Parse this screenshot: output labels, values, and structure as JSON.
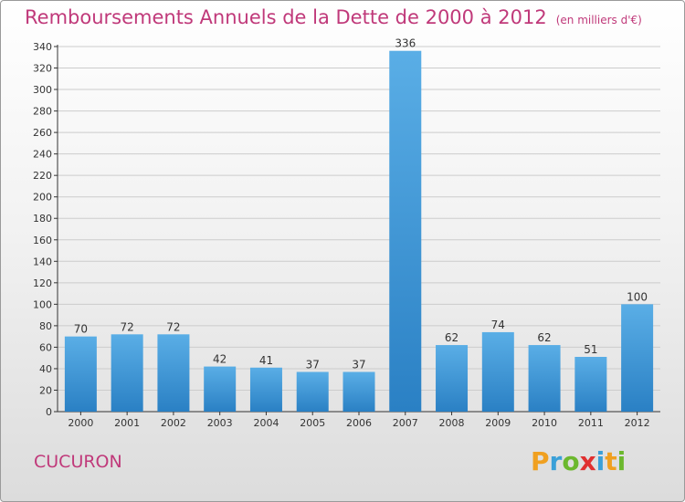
{
  "title": "Remboursements Annuels de la Dette de 2000 à 2012",
  "unit": "(en milliers d'€)",
  "city": "CUCURON",
  "logo": {
    "text": "Proxiti",
    "letters": [
      {
        "ch": "P",
        "color": "#f0a020"
      },
      {
        "ch": "r",
        "color": "#3aa0d8"
      },
      {
        "ch": "o",
        "color": "#6cb82e"
      },
      {
        "ch": "x",
        "color": "#e03030"
      },
      {
        "ch": "i",
        "color": "#3aa0d8"
      },
      {
        "ch": "t",
        "color": "#f0a020"
      },
      {
        "ch": "i",
        "color": "#6cb82e"
      }
    ]
  },
  "colors": {
    "title": "#c0397a",
    "bar_light": "#5aaee6",
    "bar_dark": "#2a80c4",
    "grid": "#cccccc"
  },
  "chart_data": {
    "type": "bar",
    "title": "Remboursements Annuels de la Dette de 2000 à 2012",
    "categories": [
      "2000",
      "2001",
      "2002",
      "2003",
      "2004",
      "2005",
      "2006",
      "2007",
      "2008",
      "2009",
      "2010",
      "2011",
      "2012"
    ],
    "values": [
      70,
      72,
      72,
      42,
      41,
      37,
      37,
      336,
      62,
      74,
      62,
      51,
      100
    ],
    "ylim": [
      0,
      340
    ],
    "yticks": [
      0,
      20,
      40,
      60,
      80,
      100,
      120,
      140,
      160,
      180,
      200,
      220,
      240,
      260,
      280,
      300,
      320,
      340
    ],
    "grid": true,
    "legend": "none"
  }
}
